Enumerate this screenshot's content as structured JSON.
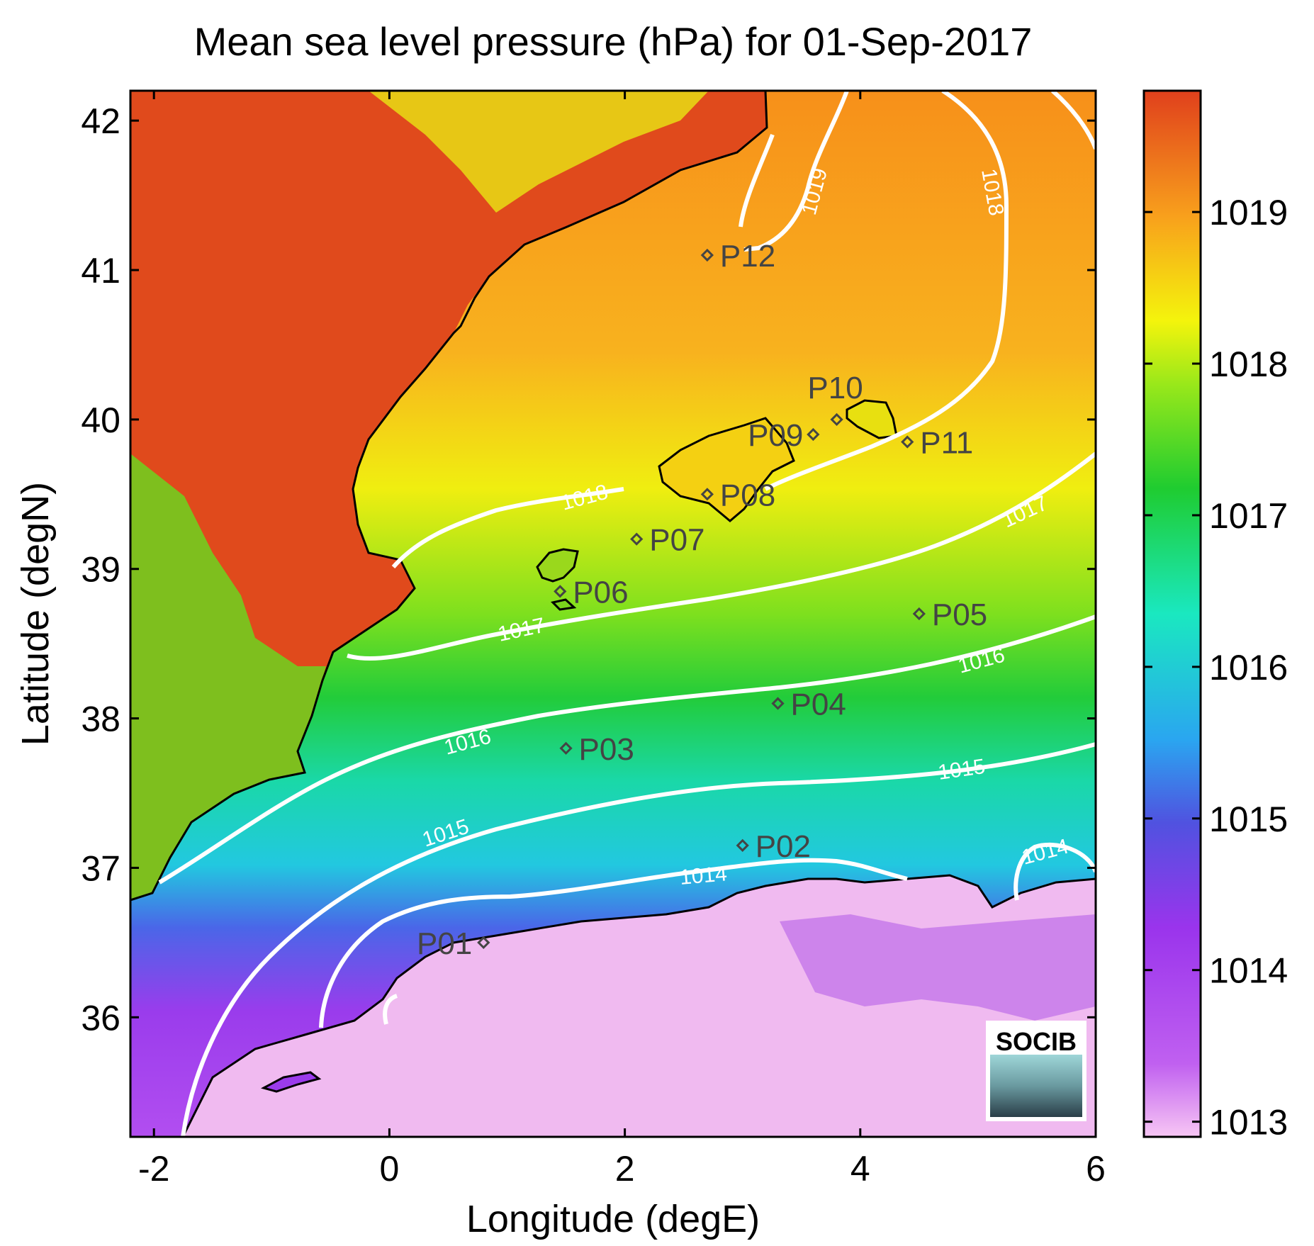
{
  "title": "Mean sea level pressure (hPa) for 01-Sep-2017",
  "xlabel": "Longitude (degE)",
  "ylabel": "Latitude (degN)",
  "colors": {
    "high": "#e04a1c",
    "orange": "#f7a21e",
    "yellow": "#f2f20c",
    "green": "#2ccc2c",
    "cyan": "#1ae0c8",
    "blue": "#3a7ee8",
    "purple": "#9b3bec",
    "pink": "#f0b8f0",
    "contour": "#ffffff",
    "coast": "#000000",
    "point": "#444444"
  },
  "chart_data": {
    "type": "heatmap",
    "variable": "Mean sea level pressure",
    "units": "hPa",
    "xlim": [
      -2.2,
      6.0
    ],
    "ylim": [
      35.2,
      42.2
    ],
    "xticks": [
      "-2",
      "0",
      "2",
      "4",
      "6"
    ],
    "yticks": [
      "36",
      "37",
      "38",
      "39",
      "40",
      "41",
      "42"
    ],
    "colorbar": {
      "range": [
        1012.9,
        1019.8
      ],
      "ticks": [
        "1013",
        "1014",
        "1015",
        "1016",
        "1017",
        "1018",
        "1019"
      ]
    },
    "contour_labels": [
      "1014",
      "1014",
      "1015",
      "1015",
      "1016",
      "1016",
      "1017",
      "1017",
      "1018",
      "1018",
      "1019"
    ],
    "points": [
      {
        "name": "P01",
        "lon": 0.8,
        "lat": 36.5
      },
      {
        "name": "P02",
        "lon": 3.0,
        "lat": 37.15
      },
      {
        "name": "P03",
        "lon": 1.5,
        "lat": 37.8
      },
      {
        "name": "P04",
        "lon": 3.3,
        "lat": 38.1
      },
      {
        "name": "P05",
        "lon": 4.5,
        "lat": 38.7
      },
      {
        "name": "P06",
        "lon": 1.45,
        "lat": 38.85
      },
      {
        "name": "P07",
        "lon": 2.1,
        "lat": 39.2
      },
      {
        "name": "P08",
        "lon": 2.7,
        "lat": 39.5
      },
      {
        "name": "P09",
        "lon": 3.6,
        "lat": 39.9
      },
      {
        "name": "P10",
        "lon": 3.8,
        "lat": 40.0
      },
      {
        "name": "P11",
        "lon": 4.4,
        "lat": 39.85
      },
      {
        "name": "P12",
        "lon": 2.7,
        "lat": 41.1
      }
    ]
  },
  "logo": {
    "text": "SOCIB"
  }
}
